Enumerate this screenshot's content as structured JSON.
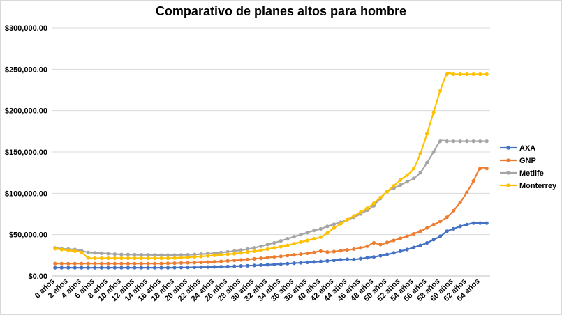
{
  "chart_data": {
    "type": "line",
    "title": "Comparativo de planes altos para hombre",
    "xlabel": "",
    "ylabel": "",
    "ylim": [
      0,
      300000
    ],
    "y_ticks": [
      0,
      50000,
      100000,
      150000,
      200000,
      250000,
      300000
    ],
    "y_tick_labels": [
      "$0.00",
      "$50,000.00",
      "$100,000.00",
      "$150,000.00",
      "$200,000.00",
      "$250,000.00",
      "$300,000.00"
    ],
    "grid": true,
    "legend_position": "right",
    "x_tick_labels": [
      "0 años",
      "2 años",
      "4 años",
      "6 años",
      "8 años",
      "10 años",
      "12 años",
      "14 años",
      "16 años",
      "18 años",
      "20 años",
      "22 años",
      "24 años",
      "26 años",
      "28 años",
      "30 años",
      "32 años",
      "34 años",
      "36 años",
      "38 años",
      "40 años",
      "42 años",
      "44 años",
      "46 años",
      "48 años",
      "50 años",
      "52 años",
      "54 años",
      "56 años",
      "58 años",
      "60 años",
      "62 años",
      "64 años"
    ],
    "x_ages": [
      0,
      1,
      2,
      3,
      4,
      5,
      6,
      7,
      8,
      9,
      10,
      11,
      12,
      13,
      14,
      15,
      16,
      17,
      18,
      19,
      20,
      21,
      22,
      23,
      24,
      25,
      26,
      27,
      28,
      29,
      30,
      31,
      32,
      33,
      34,
      35,
      36,
      37,
      38,
      39,
      40,
      41,
      42,
      43,
      44,
      45,
      46,
      47,
      48,
      49,
      50,
      51,
      52,
      53,
      54,
      55,
      56,
      57,
      58,
      59,
      60,
      61,
      62,
      63,
      64,
      65
    ],
    "series": [
      {
        "name": "AXA",
        "color": "#4472C4",
        "values": [
          10000,
          10000,
          10000,
          10000,
          10000,
          10000,
          10000,
          10000,
          10000,
          10000,
          10000,
          10000,
          10000,
          10000,
          10000,
          10000,
          10000,
          10000,
          10100,
          10200,
          10300,
          10500,
          10700,
          10900,
          11000,
          11200,
          11500,
          11800,
          12100,
          12400,
          12800,
          13200,
          13600,
          14000,
          14400,
          15000,
          15500,
          16000,
          16500,
          17000,
          17500,
          18200,
          18900,
          19600,
          20200,
          20000,
          21000,
          22000,
          23000,
          24500,
          26000,
          28000,
          30000,
          32000,
          34500,
          37000,
          40000,
          44000,
          48000,
          54000,
          57000,
          60000,
          62000,
          64000,
          64000,
          64000
        ]
      },
      {
        "name": "GNP",
        "color": "#ED7D31",
        "values": [
          15000,
          15000,
          15000,
          15000,
          15000,
          15000,
          15000,
          15000,
          15000,
          15000,
          15000,
          15000,
          15000,
          15000,
          15000,
          15000,
          15100,
          15300,
          15500,
          15700,
          15900,
          16100,
          16400,
          16800,
          17200,
          17700,
          18200,
          18800,
          19400,
          20000,
          20700,
          21400,
          22200,
          23000,
          23800,
          24700,
          25600,
          26500,
          27500,
          28500,
          30000,
          29000,
          29500,
          30500,
          31500,
          32500,
          34000,
          36000,
          40000,
          38000,
          40500,
          43000,
          45500,
          48000,
          51000,
          54000,
          58000,
          62000,
          66000,
          71000,
          79000,
          89000,
          101000,
          115000,
          130000,
          130000
        ]
      },
      {
        "name": "Metlife",
        "color": "#A5A5A5",
        "values": [
          34000,
          33000,
          32500,
          32000,
          30500,
          28500,
          28000,
          27500,
          27000,
          26500,
          26000,
          26000,
          25800,
          25600,
          25500,
          25400,
          25300,
          25300,
          25400,
          25500,
          25700,
          26000,
          26500,
          27000,
          27500,
          28300,
          29200,
          30200,
          31300,
          32500,
          34000,
          36000,
          38000,
          40000,
          42500,
          45000,
          47500,
          50000,
          52500,
          55000,
          57000,
          60000,
          62500,
          65000,
          68000,
          71000,
          75000,
          79500,
          85000,
          94000,
          102000,
          106000,
          110000,
          114000,
          118000,
          125000,
          137000,
          150000,
          163000,
          163000,
          163000,
          163000,
          163000,
          163000,
          163000,
          163000
        ]
      },
      {
        "name": "Monterrey",
        "color": "#FFC000",
        "values": [
          33000,
          32000,
          31000,
          30000,
          28500,
          22000,
          21500,
          21500,
          21500,
          21500,
          21500,
          21500,
          21500,
          21500,
          21500,
          21500,
          21500,
          21500,
          21800,
          22200,
          22600,
          23200,
          23700,
          24300,
          25000,
          25700,
          26300,
          27000,
          28000,
          29000,
          30000,
          31000,
          32500,
          34000,
          35500,
          37000,
          39000,
          41000,
          43000,
          45000,
          47000,
          52000,
          58000,
          63000,
          68000,
          72500,
          77000,
          82000,
          88000,
          95000,
          102000,
          109000,
          116000,
          122000,
          130000,
          148000,
          172000,
          198000,
          224000,
          244000,
          244000,
          244000,
          244000,
          244000,
          244000,
          244000
        ]
      }
    ]
  }
}
